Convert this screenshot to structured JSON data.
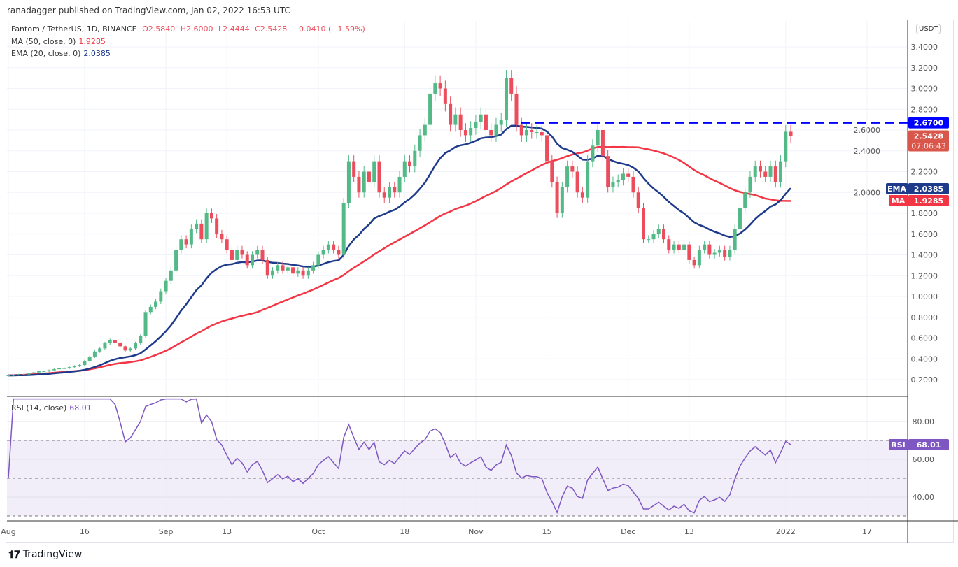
{
  "header": {
    "publisher": "ranadagger published on TradingView.com, Jan 02, 2022 16:53 UTC"
  },
  "legend": {
    "symbol": "Fantom / TetherUS, 1D, BINANCE",
    "open": "O2.5840",
    "high": "H2.6000",
    "low": "L2.4444",
    "close": "C2.5428",
    "change": "−0.0410 (−1.59%)",
    "ma_label": "MA (50, close, 0)",
    "ma_value": "1.9285",
    "ema_label": "EMA (20, close, 0)",
    "ema_value": "2.0385",
    "rsi_label": "RSI (14, close)",
    "rsi_value": "68.01"
  },
  "axis": {
    "currency": "USDT",
    "price_ticks": [
      "3.4000",
      "3.2000",
      "3.0000",
      "2.8000",
      "2.6000",
      "2.4000",
      "2.2000",
      "2.0000",
      "1.8000",
      "1.6000",
      "1.4000",
      "1.2000",
      "1.0000",
      "0.8000",
      "0.6000",
      "0.4000",
      "0.2000"
    ],
    "rsi_ticks": [
      "80.00",
      "60.00",
      "40.00"
    ],
    "time_labels": [
      {
        "label": "Aug",
        "day": 0
      },
      {
        "label": "16",
        "day": 15
      },
      {
        "label": "Sep",
        "day": 31
      },
      {
        "label": "13",
        "day": 43
      },
      {
        "label": "Oct",
        "day": 61
      },
      {
        "label": "18",
        "day": 78
      },
      {
        "label": "Nov",
        "day": 92
      },
      {
        "label": "15",
        "day": 106
      },
      {
        "label": "Dec",
        "day": 122
      },
      {
        "label": "13",
        "day": 134
      },
      {
        "label": "2022",
        "day": 153
      },
      {
        "label": "17",
        "day": 169
      }
    ]
  },
  "badges": {
    "resistance": "2.6700",
    "last_price": "2.5428",
    "countdown": "07:06:43",
    "ema_tag": "EMA",
    "ema": "2.0385",
    "ma_tag": "MA",
    "ma": "1.9285",
    "rsi_tag": "RSI",
    "rsi": "68.01"
  },
  "colors": {
    "up": "#53b987",
    "down": "#eb4d5c",
    "ema": "#1e3a8a",
    "ma": "#f23645",
    "rsi": "#7e57c2",
    "resistance": "#0000ff"
  },
  "chart_data": {
    "type": "candlestick",
    "start": "2021-08-01",
    "interval": "1D",
    "resistance": 2.67,
    "ylim": [
      0.1,
      3.55
    ],
    "rsi_bands": [
      30,
      50,
      70
    ],
    "closes": [
      0.24,
      0.245,
      0.25,
      0.25,
      0.26,
      0.27,
      0.28,
      0.28,
      0.29,
      0.3,
      0.31,
      0.31,
      0.32,
      0.33,
      0.34,
      0.38,
      0.42,
      0.47,
      0.5,
      0.55,
      0.58,
      0.55,
      0.52,
      0.48,
      0.5,
      0.55,
      0.62,
      0.85,
      0.9,
      0.95,
      1.05,
      1.15,
      1.25,
      1.45,
      1.55,
      1.5,
      1.65,
      1.7,
      1.55,
      1.8,
      1.75,
      1.6,
      1.55,
      1.45,
      1.35,
      1.45,
      1.4,
      1.3,
      1.4,
      1.45,
      1.35,
      1.2,
      1.25,
      1.3,
      1.25,
      1.28,
      1.22,
      1.25,
      1.2,
      1.25,
      1.3,
      1.4,
      1.45,
      1.5,
      1.45,
      1.4,
      1.9,
      2.3,
      2.15,
      2.0,
      2.2,
      2.1,
      2.3,
      2.0,
      1.95,
      2.05,
      2.0,
      2.15,
      2.3,
      2.25,
      2.4,
      2.55,
      2.65,
      2.95,
      3.05,
      3.0,
      2.85,
      2.65,
      2.75,
      2.6,
      2.55,
      2.62,
      2.68,
      2.75,
      2.6,
      2.55,
      2.65,
      2.7,
      3.1,
      2.95,
      2.65,
      2.55,
      2.6,
      2.58,
      2.58,
      2.55,
      2.3,
      2.1,
      1.8,
      2.05,
      2.25,
      2.2,
      2.0,
      1.95,
      2.3,
      2.45,
      2.6,
      2.35,
      2.05,
      2.1,
      2.12,
      2.18,
      2.15,
      2.0,
      1.85,
      1.55,
      1.55,
      1.6,
      1.65,
      1.55,
      1.45,
      1.5,
      1.45,
      1.5,
      1.35,
      1.3,
      1.45,
      1.5,
      1.4,
      1.42,
      1.45,
      1.38,
      1.45,
      1.65,
      1.85,
      2.0,
      2.15,
      2.25,
      2.2,
      2.15,
      2.25,
      2.1,
      2.3,
      2.584,
      2.5428
    ]
  }
}
